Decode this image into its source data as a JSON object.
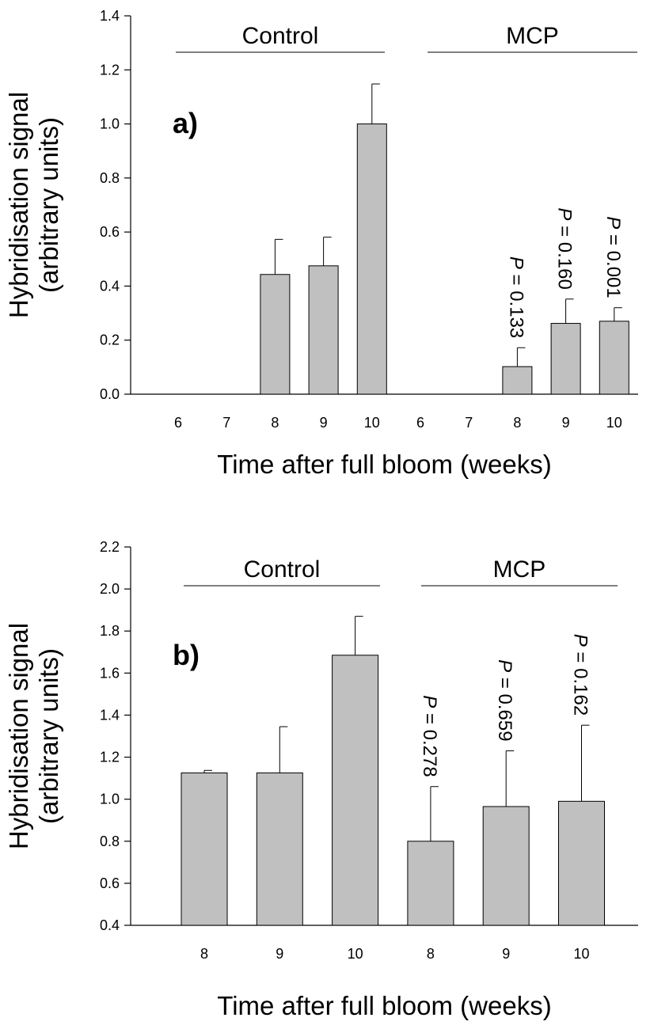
{
  "chart_data": [
    {
      "type": "bar",
      "panel_label": "a)",
      "xlabel": "Time after full bloom (weeks)",
      "ylabel_line1": "Hybridisation signal",
      "ylabel_line2": "(arbitrary units)",
      "ylim": [
        0,
        1.4
      ],
      "yticks": [
        "0.0",
        "0.2",
        "0.4",
        "0.6",
        "0.8",
        "1.0",
        "1.2",
        "1.4"
      ],
      "bar_color": "#c0c0c0",
      "groups": [
        {
          "name": "Control",
          "first": 0,
          "last": 4
        },
        {
          "name": "MCP",
          "first": 5,
          "last": 9
        }
      ],
      "categories": [
        "6",
        "7",
        "8",
        "9",
        "10",
        "6",
        "7",
        "8",
        "9",
        "10"
      ],
      "values": [
        0,
        0,
        0.443,
        0.475,
        1.0,
        0,
        0,
        0.102,
        0.262,
        0.27
      ],
      "errors": [
        0,
        0,
        0.13,
        0.106,
        0.148,
        0,
        0,
        0.07,
        0.09,
        0.05
      ],
      "annotations": [
        {
          "index": 7,
          "p": "P",
          "text": " = 0.133"
        },
        {
          "index": 8,
          "p": "P",
          "text": " = 0.160"
        },
        {
          "index": 9,
          "p": "P",
          "text": " = 0.001"
        }
      ]
    },
    {
      "type": "bar",
      "panel_label": "b)",
      "xlabel": "Time after full bloom (weeks)",
      "ylabel_line1": "Hybridisation signal",
      "ylabel_line2": "(arbitrary units)",
      "ylim": [
        0.4,
        2.2
      ],
      "yticks": [
        "0.4",
        "0.6",
        "0.8",
        "1.0",
        "1.2",
        "1.4",
        "1.6",
        "1.8",
        "2.0",
        "2.2"
      ],
      "bar_color": "#c0c0c0",
      "groups": [
        {
          "name": "Control",
          "first": 0,
          "last": 2
        },
        {
          "name": "MCP",
          "first": 3,
          "last": 5
        }
      ],
      "categories": [
        "8",
        "9",
        "10",
        "8",
        "9",
        "10"
      ],
      "values": [
        1.125,
        1.125,
        1.685,
        0.8,
        0.965,
        0.99
      ],
      "errors": [
        0.012,
        0.22,
        0.185,
        0.26,
        0.265,
        0.362
      ],
      "annotations": [
        {
          "index": 3,
          "p": "P",
          "text": " = 0.278"
        },
        {
          "index": 4,
          "p": "P",
          "text": " = 0.659"
        },
        {
          "index": 5,
          "p": "P",
          "text": " = 0.162"
        }
      ]
    }
  ]
}
